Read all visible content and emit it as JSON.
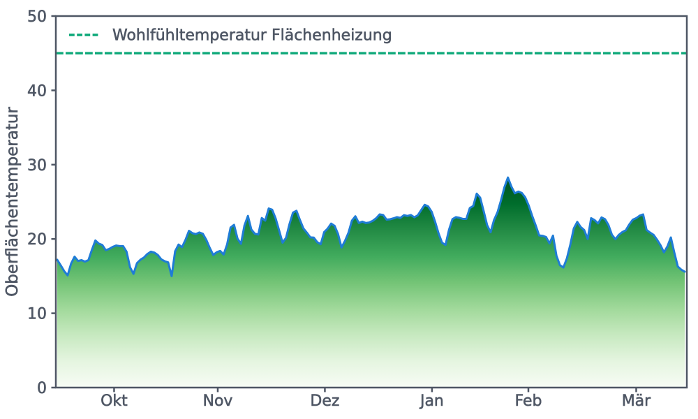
{
  "chart_data": {
    "type": "area",
    "title": "",
    "xlabel": "",
    "ylabel": "Oberflächentemperatur",
    "ylim": [
      0,
      50
    ],
    "yticks": [
      0,
      10,
      20,
      30,
      40,
      50
    ],
    "xtick_labels": [
      "Okt",
      "Nov",
      "Dez",
      "Jan",
      "Feb",
      "Mär"
    ],
    "xtick_positions": [
      16.4,
      46.3,
      77.2,
      108.1,
      135.9,
      167.0
    ],
    "grid": false,
    "legend_position": "upper left",
    "series": [
      {
        "name": "Oberflächentemperatur",
        "type": "line",
        "color": "#1f7cd6",
        "fill": "green-to-white vertical gradient",
        "values": [
          17.2,
          16.46,
          15.68,
          15.1,
          16.69,
          17.62,
          17.04,
          17.15,
          16.95,
          17.15,
          18.54,
          19.8,
          19.37,
          19.19,
          18.49,
          18.66,
          18.94,
          19.12,
          19.04,
          19.04,
          18.29,
          16.2,
          15.3,
          16.75,
          17.21,
          17.5,
          17.98,
          18.29,
          18.17,
          17.85,
          17.26,
          17.0,
          16.85,
          15.0,
          18.34,
          19.25,
          18.9,
          19.89,
          21.1,
          20.78,
          20.66,
          20.88,
          20.7,
          19.88,
          18.79,
          17.85,
          18.22,
          18.39,
          17.91,
          19.27,
          21.54,
          21.9,
          20.05,
          19.35,
          21.81,
          23.1,
          21.27,
          20.7,
          20.6,
          22.82,
          22.47,
          24.1,
          23.94,
          22.76,
          21.16,
          19.5,
          20.16,
          22.02,
          23.55,
          23.8,
          22.57,
          21.42,
          20.85,
          20.22,
          20.18,
          19.57,
          19.3,
          20.93,
          21.39,
          22.07,
          21.77,
          20.67,
          18.86,
          19.74,
          20.83,
          22.47,
          23.05,
          22.15,
          22.33,
          22.15,
          22.22,
          22.44,
          22.79,
          23.31,
          23.23,
          22.6,
          22.65,
          22.78,
          22.94,
          22.84,
          23.2,
          23.1,
          23.22,
          22.92,
          23.18,
          23.9,
          24.6,
          24.38,
          23.67,
          22.31,
          20.74,
          19.5,
          19.2,
          21.23,
          22.67,
          22.94,
          22.85,
          22.7,
          22.7,
          24.16,
          24.44,
          26.1,
          25.55,
          23.75,
          21.86,
          20.9,
          22.56,
          23.6,
          25.2,
          26.99,
          28.27,
          27.05,
          26.15,
          26.38,
          26.2,
          25.59,
          24.5,
          23.11,
          21.84,
          20.48,
          20.42,
          20.26,
          19.4,
          20.45,
          17.74,
          16.47,
          16.16,
          17.39,
          19.25,
          21.42,
          22.3,
          21.6,
          21.2,
          20.0,
          22.8,
          22.54,
          22.09,
          22.9,
          22.67,
          21.88,
          20.56,
          19.97,
          20.56,
          20.93,
          21.17,
          21.95,
          22.59,
          22.8,
          23.14,
          23.3,
          21.21,
          20.86,
          20.56,
          19.91,
          19.17,
          18.2,
          18.99,
          20.2,
          18.16,
          16.29,
          15.87,
          15.6
        ]
      }
    ],
    "reference_line": {
      "label": "Wohlfühltemperatur Flächenheizung",
      "value": 45,
      "color": "#0ca878",
      "style": "dashed"
    },
    "area_gradient": [
      "#f7fcf5",
      "#e5f5e0",
      "#c7e9c0",
      "#a1d99b",
      "#74c476",
      "#41ab5d",
      "#238b45",
      "#006d2c",
      "#00521f"
    ],
    "axis_color": "#4e5664",
    "text_color": "#4e5664",
    "background": "#ffffff"
  }
}
